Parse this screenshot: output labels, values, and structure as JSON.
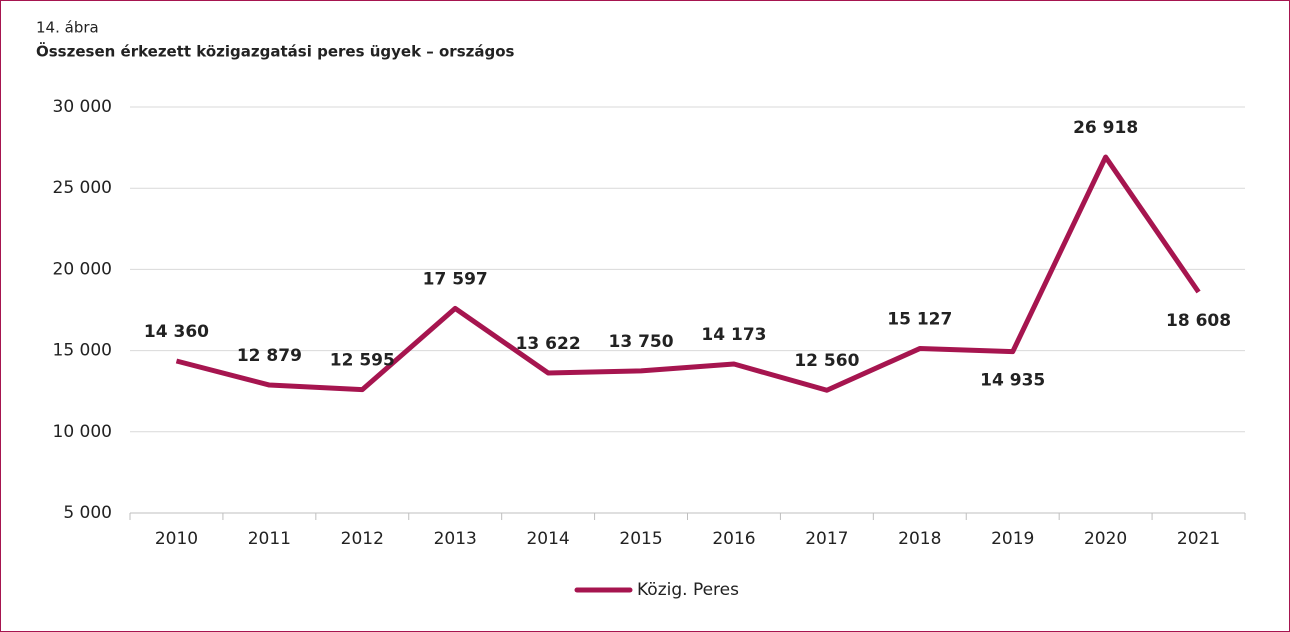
{
  "chart_data": {
    "type": "line",
    "subtitle": "14. ábra",
    "title": "Összesen érkezett közigazgatási peres ügyek – országos",
    "categories": [
      "2010",
      "2011",
      "2012",
      "2013",
      "2014",
      "2015",
      "2016",
      "2017",
      "2018",
      "2019",
      "2020",
      "2021"
    ],
    "series": [
      {
        "name": "Közig. Peres",
        "color": "#a6154f",
        "values": [
          14360,
          12879,
          12595,
          17597,
          13622,
          13750,
          14173,
          12560,
          15127,
          14935,
          26918,
          18608
        ],
        "value_labels": [
          "14 360",
          "12 879",
          "12 595",
          "17 597",
          "13 622",
          "13 750",
          "14 173",
          "12 560",
          "15 127",
          "14 935",
          "26 918",
          "18 608"
        ]
      }
    ],
    "ylim": [
      5000,
      30000
    ],
    "yticks": [
      {
        "value": 5000,
        "label": "5 000"
      },
      {
        "value": 10000,
        "label": "10 000"
      },
      {
        "value": 15000,
        "label": "15 000"
      },
      {
        "value": 20000,
        "label": "20 000"
      },
      {
        "value": 25000,
        "label": "25 000"
      },
      {
        "value": 30000,
        "label": "30 000"
      }
    ],
    "grid": true,
    "legend": "bottom"
  }
}
